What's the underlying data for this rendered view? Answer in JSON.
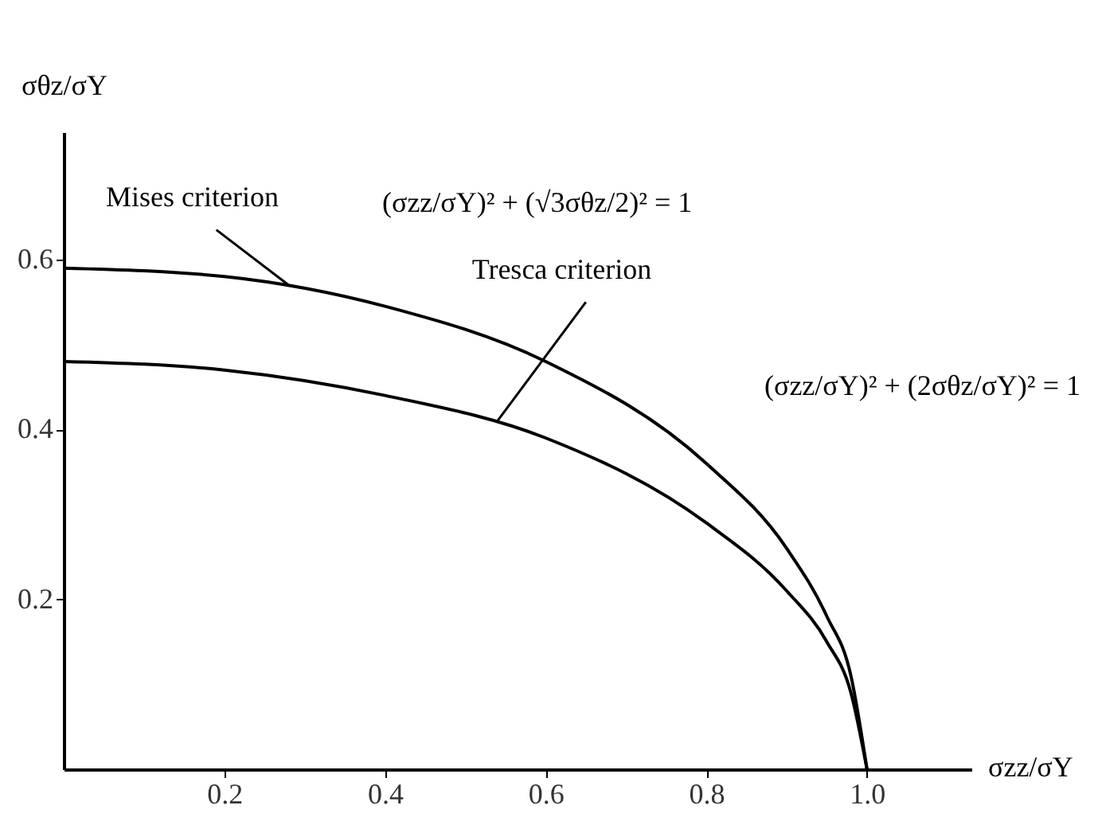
{
  "chart_data": {
    "type": "line",
    "xlabel": "σzz/σY",
    "ylabel": "σθz/σY",
    "xlim": [
      0,
      1.13
    ],
    "ylim": [
      0,
      0.75
    ],
    "xticks": [
      0.2,
      0.4,
      0.6,
      0.8,
      {
        "value": 1.0,
        "label": "1.0"
      }
    ],
    "yticks": [
      0.2,
      0.4,
      0.6
    ],
    "grid": false,
    "marker": "none",
    "line_style": "solid",
    "x": [
      0,
      0.2,
      0.4,
      0.6,
      0.8,
      0.9,
      0.95,
      0.98,
      1.0
    ],
    "series": [
      {
        "color": "#000000",
        "values": [
          0.59,
          0.58,
          0.545,
          0.48,
          0.36,
          0.26,
          0.18,
          0.11,
          0
        ]
      },
      {
        "color": "#000000",
        "values": [
          0.48,
          0.47,
          0.44,
          0.39,
          0.29,
          0.21,
          0.15,
          0.09,
          0
        ]
      }
    ],
    "annotations": [
      {
        "text": "Mises criterion",
        "x": 0.28,
        "y": 0.57
      },
      "(σzz/σY)² + (√3σθz/2)² = 1",
      {
        "text": "Tresca criterion",
        "x": 0.54,
        "y": 0.41
      },
      "(σzz/σY)² + (2σθz/σY)² = 1"
    ]
  }
}
